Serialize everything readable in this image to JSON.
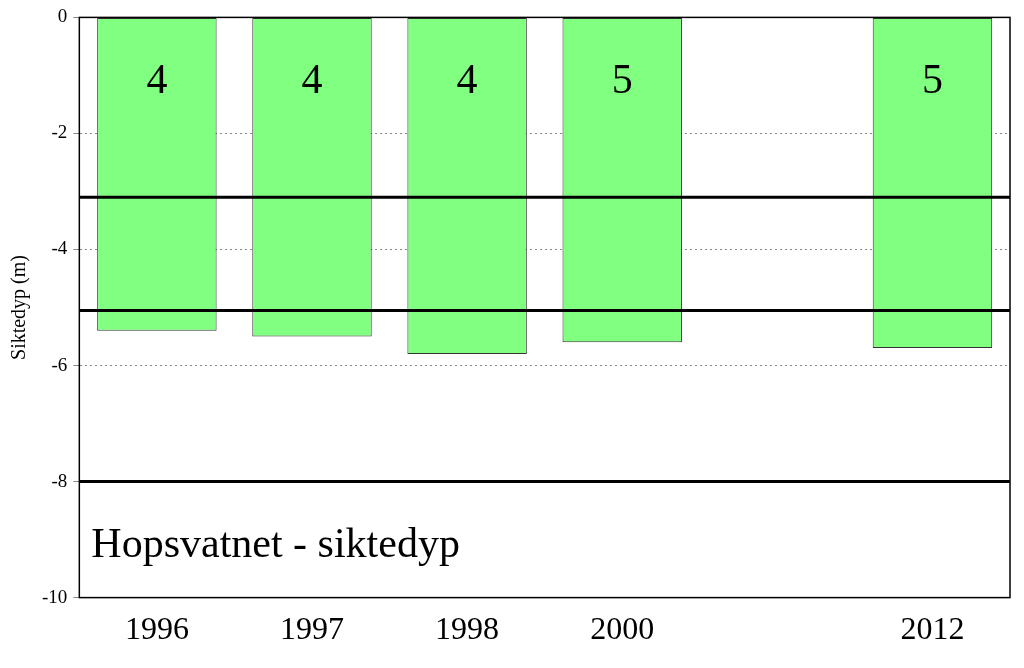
{
  "chart_data": {
    "type": "bar",
    "title": "Hopsvatnet - siktedyp",
    "y_label": "Siktedyp (m)",
    "categories": [
      "1996",
      "1997",
      "1998",
      "2000",
      null,
      "2012"
    ],
    "values": [
      -5.4,
      -5.5,
      -5.8,
      -5.6,
      null,
      -5.7
    ],
    "color": "#80ff80",
    "annotations": [
      {
        "category": "1996",
        "text": "4"
      },
      {
        "category": "1997",
        "text": "4"
      },
      {
        "category": "1998",
        "text": "4"
      },
      {
        "category": "2000",
        "text": "5"
      },
      {
        "category": "2012",
        "text": "5"
      }
    ],
    "thresholds": [
      -3.1,
      -5.05,
      -8
    ],
    "ylim": [
      -10,
      0
    ],
    "yticks": [
      -10,
      -8,
      -6,
      -4,
      -2,
      0
    ],
    "grid": true
  }
}
